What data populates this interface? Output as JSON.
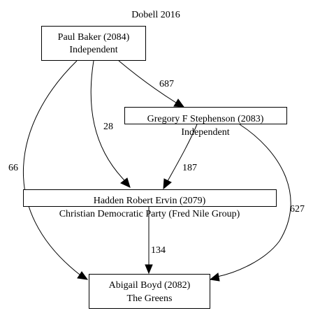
{
  "title": "Dobell 2016",
  "nodes": {
    "baker": {
      "name": "Paul Baker (2084)",
      "party": "Independent"
    },
    "stephenson": {
      "name": "Gregory F Stephenson (2083)",
      "party": "Independent"
    },
    "ervin": {
      "name": "Hadden Robert Ervin (2079)",
      "party": "Christian Democratic Party (Fred Nile Group)"
    },
    "boyd": {
      "name": "Abigail Boyd (2082)",
      "party": "The Greens"
    }
  },
  "edges": {
    "baker_stephenson": {
      "from": "Paul Baker (2084)",
      "to": "Gregory F Stephenson (2083)",
      "label": "687"
    },
    "baker_ervin": {
      "from": "Paul Baker (2084)",
      "to": "Hadden Robert Ervin (2079)",
      "label": "28"
    },
    "baker_boyd": {
      "from": "Paul Baker (2084)",
      "to": "Abigail Boyd (2082)",
      "label": "66"
    },
    "stephenson_ervin": {
      "from": "Gregory F Stephenson (2083)",
      "to": "Hadden Robert Ervin (2079)",
      "label": "187"
    },
    "stephenson_boyd": {
      "from": "Gregory F Stephenson (2083)",
      "to": "Abigail Boyd (2082)",
      "label": "627"
    },
    "ervin_boyd": {
      "from": "Hadden Robert Ervin (2079)",
      "to": "Abigail Boyd (2082)",
      "label": "134"
    }
  }
}
